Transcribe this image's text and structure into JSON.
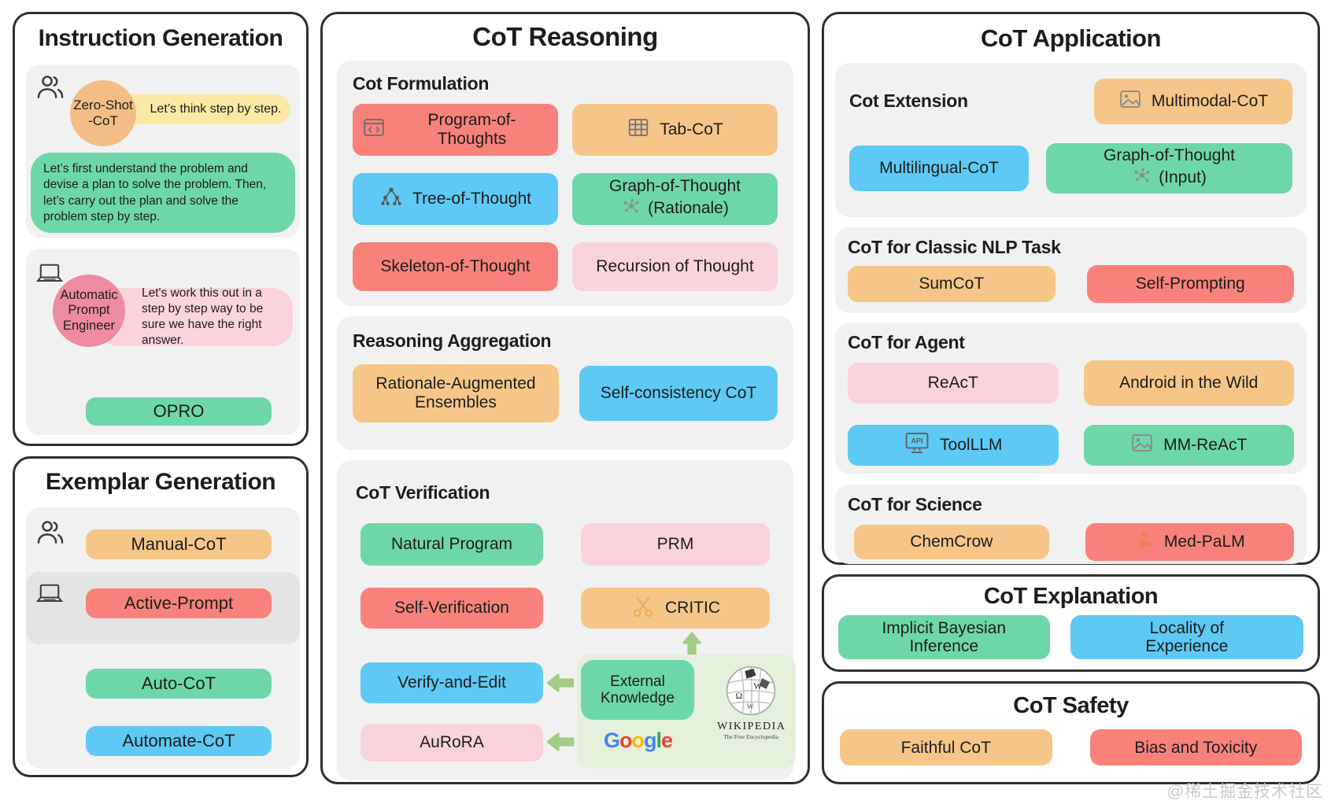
{
  "palette": {
    "red": "#F8827A",
    "orange": "#F5C687",
    "blue": "#5EC9F4",
    "green": "#6ED7A9",
    "pink": "#F8CEDA",
    "pink_deep": "#EF8BA1",
    "peach_circle": "#F2BE85",
    "yellow": "#FAE9A2",
    "panel_gray": "#F1F1F1",
    "panel_dark_gray": "#E4E4E4",
    "knowledge_bg": "#E5F0DB",
    "arrow_green": "#A3CC86",
    "border": "#2F2F2F"
  },
  "icons": {
    "users-icon": "two-person outline",
    "laptop-icon": "laptop outline",
    "code-window-icon": "browser window with code brackets",
    "table-icon": "table grid",
    "tree-icon": "tree hierarchy nodes",
    "graph-icon": "molecule graph nodes",
    "image-icon": "picture frame with mountains",
    "api-icon": "monitor with API text",
    "tools-icon": "crossed tools",
    "med-icon": "person silhouette",
    "wikipedia-globe-icon": "puzzle globe",
    "arrow-up-icon": "thick up arrow",
    "arrow-left-icon": "thick left arrow"
  },
  "watermark": "@稀土掘金技术社区",
  "instruction_generation": {
    "title": "Instruction Generation",
    "zero_shot": {
      "circle": [
        "Zero-Shot",
        "-CoT"
      ],
      "prompt": "Let’s think step by step.",
      "plan": "Let’s first understand the problem and devise a plan to solve the problem. Then, let’s carry out the plan and solve the problem step by step."
    },
    "ape": {
      "circle": [
        "Automatic",
        "Prompt",
        "Engineer"
      ],
      "prompt": "Let's work this out in a step by step way to be sure we have the right answer.",
      "chip": "OPRO"
    }
  },
  "exemplar_generation": {
    "title": "Exemplar Generation",
    "manual": "Manual-CoT",
    "active": "Active-Prompt",
    "auto": "Auto-CoT",
    "automate": "Automate-CoT"
  },
  "cot_reasoning": {
    "title": "CoT Reasoning",
    "formulation": {
      "label": "Cot Formulation",
      "program_of_thoughts": "Program-of-Thoughts",
      "tab_cot": "Tab-CoT",
      "tree_of_thought": "Tree-of-Thought",
      "graph_of_thought": [
        "Graph-of-Thought",
        "(Rationale)"
      ],
      "skeleton_of_thought": "Skeleton-of-Thought",
      "recursion_of_thought": "Recursion of Thought"
    },
    "aggregation": {
      "label": "Reasoning Aggregation",
      "rationale_augmented": "Rationale-Augmented Ensembles",
      "self_consistency": "Self-consistency CoT"
    },
    "verification": {
      "label": "CoT Verification",
      "natural_program": "Natural Program",
      "prm": "PRM",
      "self_verification": "Self-Verification",
      "critic": "CRITIC",
      "verify_and_edit": "Verify-and-Edit",
      "aurora": "AuRoRA",
      "external_knowledge": [
        "External",
        "Knowledge"
      ],
      "google": "Google",
      "google_colors": [
        "#4285F4",
        "#EA4335",
        "#FBBC05",
        "#4285F4",
        "#34A853",
        "#EA4335"
      ],
      "wikipedia": "WIKIPEDIA",
      "wikipedia_sub": "The Free Encyclopedia"
    }
  },
  "cot_application": {
    "title": "CoT Application",
    "extension": {
      "label": "Cot Extension",
      "multimodal": "Multimodal-CoT",
      "multilingual": "Multilingual-CoT",
      "graph_input": [
        "Graph-of-Thought",
        "(Input)"
      ]
    },
    "nlp": {
      "label": "CoT for Classic NLP Task",
      "sumcot": "SumCoT",
      "self_prompting": "Self-Prompting"
    },
    "agent": {
      "label": "CoT for Agent",
      "react": "ReAcT",
      "android": "Android in the Wild",
      "toolllm": "ToolLLM",
      "mm_react": "MM-ReAcT"
    },
    "science": {
      "label": "CoT for Science",
      "chemcrow": "ChemCrow",
      "med_palm": "Med-PaLM"
    }
  },
  "cot_explanation": {
    "title": "CoT Explanation",
    "implicit_bayesian": "Implicit Bayesian Inference",
    "locality": "Locality of Experience"
  },
  "cot_safety": {
    "title": "CoT Safety",
    "faithful": "Faithful CoT",
    "bias": "Bias and Toxicity"
  }
}
